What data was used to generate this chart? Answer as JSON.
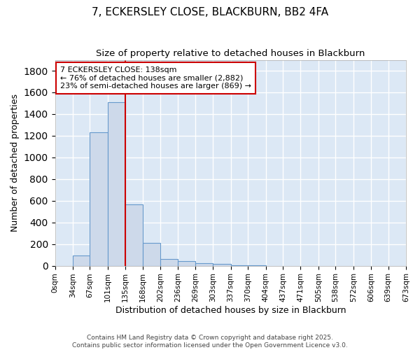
{
  "title1": "7, ECKERSLEY CLOSE, BLACKBURN, BB2 4FA",
  "title2": "Size of property relative to detached houses in Blackburn",
  "xlabel": "Distribution of detached houses by size in Blackburn",
  "ylabel": "Number of detached properties",
  "bin_edges": [
    0,
    34,
    67,
    101,
    135,
    168,
    202,
    236,
    269,
    303,
    337,
    370,
    404,
    437,
    471,
    505,
    538,
    572,
    606,
    639,
    673
  ],
  "bar_heights": [
    0,
    95,
    1230,
    1510,
    565,
    210,
    65,
    45,
    25,
    15,
    5,
    5,
    0,
    0,
    0,
    0,
    0,
    0,
    0,
    0
  ],
  "tick_labels": [
    "0sqm",
    "34sqm",
    "67sqm",
    "101sqm",
    "135sqm",
    "168sqm",
    "202sqm",
    "236sqm",
    "269sqm",
    "303sqm",
    "337sqm",
    "370sqm",
    "404sqm",
    "437sqm",
    "471sqm",
    "505sqm",
    "538sqm",
    "572sqm",
    "606sqm",
    "639sqm",
    "673sqm"
  ],
  "bar_color": "#cdd9ea",
  "bar_edge_color": "#6699cc",
  "vline_x": 135,
  "vline_color": "#cc0000",
  "annotation_text": "7 ECKERSLEY CLOSE: 138sqm\n← 76% of detached houses are smaller (2,882)\n23% of semi-detached houses are larger (869) →",
  "annotation_box_facecolor": "#ffffff",
  "annotation_box_edgecolor": "#cc0000",
  "ylim": [
    0,
    1900
  ],
  "yticks": [
    0,
    200,
    400,
    600,
    800,
    1000,
    1200,
    1400,
    1600,
    1800
  ],
  "fig_facecolor": "#ffffff",
  "ax_facecolor": "#dce8f5",
  "grid_color": "#ffffff",
  "footer_text": "Contains HM Land Registry data © Crown copyright and database right 2025.\nContains public sector information licensed under the Open Government Licence v3.0.",
  "title1_fontsize": 11,
  "title2_fontsize": 9.5,
  "ylabel_fontsize": 9,
  "xlabel_fontsize": 9,
  "tick_fontsize": 7.5,
  "annotation_fontsize": 8,
  "footer_fontsize": 6.5
}
